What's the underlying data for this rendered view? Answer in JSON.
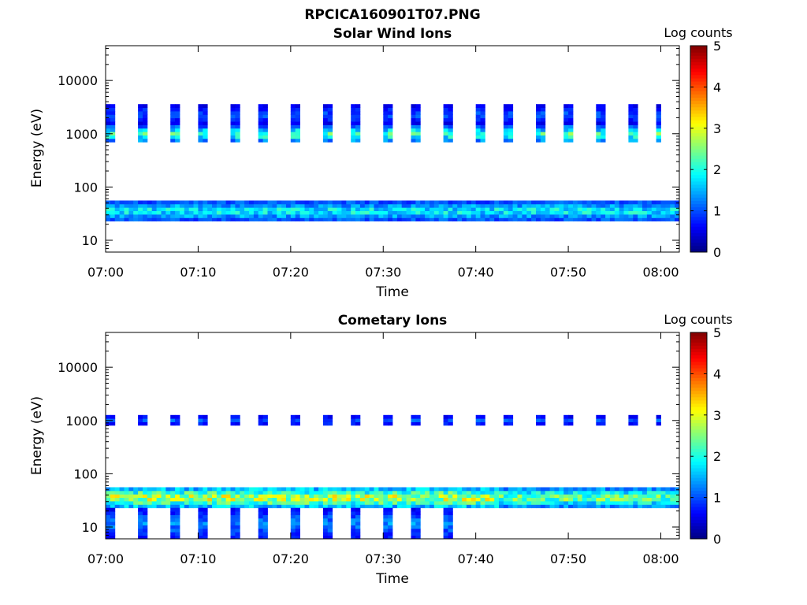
{
  "figure_title": "RPCICA160901T07.PNG",
  "chart_data": [
    {
      "type": "heatmap",
      "title": "Solar Wind Ions",
      "xlabel": "Time",
      "ylabel": "Energy (eV)",
      "yscale": "log",
      "ylim": [
        6,
        45000
      ],
      "yticks": [
        10,
        100,
        1000,
        10000
      ],
      "yticklabels": [
        "10",
        "100",
        "1000",
        "10000"
      ],
      "xlim": [
        "07:00",
        "08:02"
      ],
      "xticks": [
        "07:00",
        "07:10",
        "07:20",
        "07:30",
        "07:40",
        "07:50",
        "08:00"
      ],
      "colorbar": {
        "label": "Log counts",
        "min": 0,
        "max": 5,
        "ticks": [
          "0",
          "1",
          "2",
          "3",
          "4",
          "5"
        ],
        "colormap": "jet"
      },
      "bands": [
        {
          "energy_range": [
            23,
            55
          ],
          "times": [
            "07:00",
            "08:02"
          ],
          "peak_log_counts": 2.2
        },
        {
          "energy_range": [
            700,
            1400
          ],
          "times": [
            "07:00",
            "08:00"
          ],
          "peak_log_counts": 2.6,
          "pattern": "periodic, ~3.3 min"
        },
        {
          "energy_range": [
            1500,
            3500
          ],
          "times": [
            "07:00",
            "08:00"
          ],
          "peak_log_counts": 1.2,
          "pattern": "periodic, ~3.3 min"
        }
      ]
    },
    {
      "type": "heatmap",
      "title": "Cometary Ions",
      "xlabel": "Time",
      "ylabel": "Energy (eV)",
      "yscale": "log",
      "ylim": [
        6,
        45000
      ],
      "yticks": [
        10,
        100,
        1000,
        10000
      ],
      "yticklabels": [
        "10",
        "100",
        "1000",
        "10000"
      ],
      "xlim": [
        "07:00",
        "08:02"
      ],
      "xticks": [
        "07:00",
        "07:10",
        "07:20",
        "07:30",
        "07:40",
        "07:50",
        "08:00"
      ],
      "colorbar": {
        "label": "Log counts",
        "min": 0,
        "max": 5,
        "ticks": [
          "0",
          "1",
          "2",
          "3",
          "4",
          "5"
        ],
        "colormap": "jet"
      },
      "bands": [
        {
          "energy_range": [
            23,
            55
          ],
          "times": [
            "07:00",
            "08:02"
          ],
          "peak_log_counts": 3.4
        },
        {
          "energy_range": [
            800,
            1250
          ],
          "times": [
            "07:00",
            "08:00"
          ],
          "peak_log_counts": 1.2,
          "pattern": "periodic, ~3.3 min"
        },
        {
          "energy_range": [
            6,
            22
          ],
          "times": [
            "07:00",
            "07:40"
          ],
          "peak_log_counts": 1.5,
          "pattern": "periodic streaks"
        }
      ]
    }
  ]
}
